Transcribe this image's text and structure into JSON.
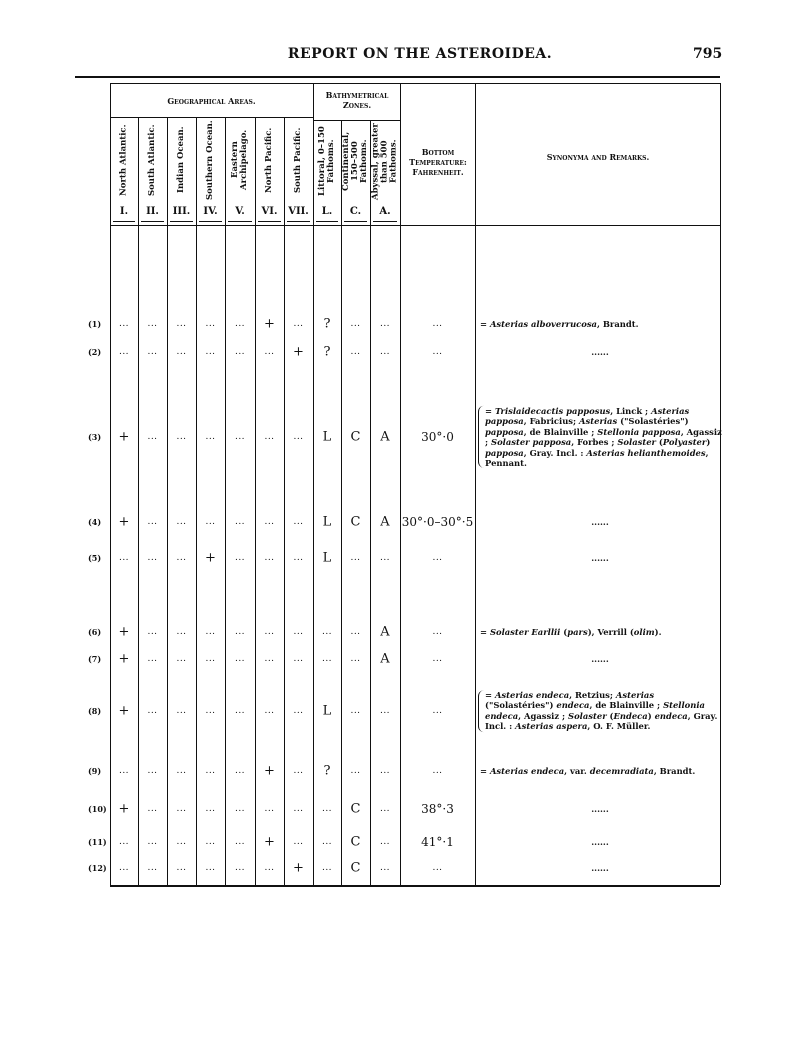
{
  "header": {
    "title": "REPORT ON THE ASTEROIDEA.",
    "page_number": "795"
  },
  "table": {
    "group_headers": {
      "geo": "Geographical Areas.",
      "bathy": "Bathymetrical Zones."
    },
    "columns": [
      {
        "label": "North Atlantic.",
        "numeral": "I."
      },
      {
        "label": "South Atlantic.",
        "numeral": "II."
      },
      {
        "label": "Indian Ocean.",
        "numeral": "III."
      },
      {
        "label": "Southern Ocean.",
        "numeral": "IV."
      },
      {
        "label": "Eastern Archipelago.",
        "numeral": "V."
      },
      {
        "label": "North Pacific.",
        "numeral": "VI."
      },
      {
        "label": "South Pacific.",
        "numeral": "VII."
      },
      {
        "label": "Littoral, 0–150 Fathoms.",
        "numeral": "L."
      },
      {
        "label": "Continental, 150–500 Fathoms.",
        "numeral": "C."
      },
      {
        "label": "Abyssal, greater than 500 Fathoms.",
        "numeral": "A."
      }
    ],
    "temp_header": "Bottom Temperature: Fahrenheit.",
    "remarks_header": "Synonyma and Remarks.",
    "rows": [
      {
        "num": "(1)",
        "cells": [
          "...",
          "...",
          "...",
          "...",
          "...",
          "+",
          "...",
          "?",
          "...",
          "..."
        ],
        "temp": "...",
        "remarks": [
          [
            "= ",
            0
          ],
          [
            "Asterias alboverrucosa",
            1
          ],
          [
            ", Brandt.",
            0
          ]
        ],
        "brace": false
      },
      {
        "num": "(2)",
        "cells": [
          "...",
          "...",
          "...",
          "...",
          "...",
          "...",
          "+",
          "?",
          "...",
          "..."
        ],
        "temp": "...",
        "remarks": [
          [
            "......",
            0
          ]
        ],
        "brace": false
      },
      {
        "num": "(3)",
        "cells": [
          "+",
          "...",
          "...",
          "...",
          "...",
          "...",
          "...",
          "L",
          "C",
          "A"
        ],
        "temp": "30°·0",
        "remarks": [
          [
            "= ",
            0
          ],
          [
            "Trislaidecactis papposus",
            1
          ],
          [
            ", Linck ; ",
            0
          ],
          [
            "Asterias papposa",
            1
          ],
          [
            ", Fabricius; ",
            0
          ],
          [
            "Asterias",
            1
          ],
          [
            " (\"Solastéries\") ",
            0
          ],
          [
            "papposa",
            1
          ],
          [
            ", de Blainville ; ",
            0
          ],
          [
            "Stellonia papposa",
            1
          ],
          [
            ", Agassiz ; ",
            0
          ],
          [
            "Solaster papposa",
            1
          ],
          [
            ", Forbes ; ",
            0
          ],
          [
            "Solaster",
            1
          ],
          [
            " (",
            0
          ],
          [
            "Polyaster",
            1
          ],
          [
            ") ",
            0
          ],
          [
            "papposa",
            1
          ],
          [
            ", Gray.  Incl. : ",
            0
          ],
          [
            "Asterias helianthemoides",
            1
          ],
          [
            ", Pennant.",
            0
          ]
        ],
        "brace": true
      },
      {
        "num": "(4)",
        "cells": [
          "+",
          "...",
          "...",
          "...",
          "...",
          "...",
          "...",
          "L",
          "C",
          "A"
        ],
        "temp": "30°·0–30°·5",
        "remarks": [
          [
            "......",
            0
          ]
        ],
        "brace": false
      },
      {
        "num": "(5)",
        "cells": [
          "...",
          "...",
          "...",
          "+",
          "...",
          "...",
          "...",
          "L",
          "...",
          "..."
        ],
        "temp": "...",
        "remarks": [
          [
            "......",
            0
          ]
        ],
        "brace": false
      },
      {
        "num": "(6)",
        "cells": [
          "+",
          "...",
          "...",
          "...",
          "...",
          "...",
          "...",
          "...",
          "...",
          "A"
        ],
        "temp": "...",
        "remarks": [
          [
            "= ",
            0
          ],
          [
            "Solaster Earllii",
            1
          ],
          [
            " (",
            0
          ],
          [
            "pars",
            1
          ],
          [
            "), Verrill (",
            0
          ],
          [
            "olim",
            1
          ],
          [
            ").",
            0
          ]
        ],
        "brace": false
      },
      {
        "num": "(7)",
        "cells": [
          "+",
          "...",
          "...",
          "...",
          "...",
          "...",
          "...",
          "...",
          "...",
          "A"
        ],
        "temp": "...",
        "remarks": [
          [
            "......",
            0
          ]
        ],
        "brace": false
      },
      {
        "num": "(8)",
        "cells": [
          "+",
          "...",
          "...",
          "...",
          "...",
          "...",
          "...",
          "L",
          "...",
          "..."
        ],
        "temp": "...",
        "remarks": [
          [
            "= ",
            0
          ],
          [
            "Asterias endeca",
            1
          ],
          [
            ", Retzius; ",
            0
          ],
          [
            "Asterias",
            1
          ],
          [
            " (\"Solastéries\") ",
            0
          ],
          [
            "endeca",
            1
          ],
          [
            ", de Blainville ; ",
            0
          ],
          [
            "Stellonia endeca",
            1
          ],
          [
            ", Agassiz ; ",
            0
          ],
          [
            "Solaster",
            1
          ],
          [
            " (",
            0
          ],
          [
            "Endeca",
            1
          ],
          [
            ") ",
            0
          ],
          [
            "endeca",
            1
          ],
          [
            ", Gray.  Incl. : ",
            0
          ],
          [
            "Asterias aspera",
            1
          ],
          [
            ", O. F. Müller.",
            0
          ]
        ],
        "brace": true
      },
      {
        "num": "(9)",
        "cells": [
          "...",
          "...",
          "...",
          "...",
          "...",
          "+",
          "...",
          "?",
          "...",
          "..."
        ],
        "temp": "...",
        "remarks": [
          [
            "= ",
            0
          ],
          [
            "Asterias endeca",
            1
          ],
          [
            ", var. ",
            0
          ],
          [
            "decemradiata",
            1
          ],
          [
            ", Brandt.",
            0
          ]
        ],
        "brace": false
      },
      {
        "num": "(10)",
        "cells": [
          "+",
          "...",
          "...",
          "...",
          "...",
          "...",
          "...",
          "...",
          "C",
          "..."
        ],
        "temp": "38°·3",
        "remarks": [
          [
            "......",
            0
          ]
        ],
        "brace": false
      },
      {
        "num": "(11)",
        "cells": [
          "...",
          "...",
          "...",
          "...",
          "...",
          "+",
          "...",
          "...",
          "C",
          "..."
        ],
        "temp": "41°·1",
        "remarks": [
          [
            "......",
            0
          ]
        ],
        "brace": false
      },
      {
        "num": "(12)",
        "cells": [
          "...",
          "...",
          "...",
          "...",
          "...",
          "...",
          "+",
          "...",
          "C",
          "..."
        ],
        "temp": "...",
        "remarks": [
          [
            "......",
            0
          ]
        ],
        "brace": false
      }
    ]
  }
}
